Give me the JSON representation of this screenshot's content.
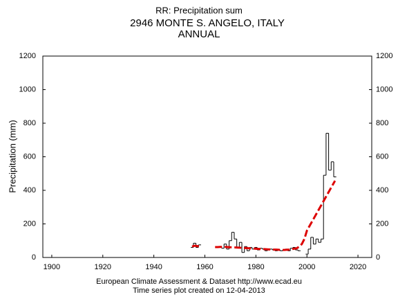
{
  "chart_data": {
    "type": "line",
    "title": "RR: Precipitation sum",
    "subtitle": "2946 MONTE S. ANGELO, ITALY",
    "period": "ANNUAL",
    "y_label": "Precipitation (mm)",
    "footer": "European Climate Assessment & Dataset  http://www.ecad.eu",
    "footer2": "Time series plot created on 12-04-2013",
    "x": [
      1955,
      1956,
      1957,
      1958,
      1959,
      1960,
      1961,
      1962,
      1963,
      1964,
      1965,
      1966,
      1967,
      1968,
      1969,
      1970,
      1971,
      1972,
      1973,
      1974,
      1975,
      1976,
      1977,
      1978,
      1979,
      1980,
      1981,
      1982,
      1983,
      1984,
      1985,
      1986,
      1987,
      1988,
      1989,
      1990,
      1991,
      1992,
      1993,
      1994,
      1995,
      1996,
      1997,
      1998,
      1999,
      2000,
      2001,
      2002,
      2003,
      2004,
      2005,
      2006,
      2007,
      2008,
      2009,
      2010,
      2011
    ],
    "series": [
      {
        "name": "annual",
        "color": "#000000",
        "style": "step",
        "values": [
          60,
          85,
          60,
          75,
          null,
          null,
          null,
          null,
          null,
          null,
          null,
          null,
          55,
          80,
          50,
          100,
          150,
          110,
          60,
          90,
          30,
          65,
          40,
          60,
          50,
          60,
          45,
          55,
          50,
          40,
          45,
          50,
          45,
          40,
          45,
          40,
          45,
          50,
          40,
          55,
          60,
          45,
          40,
          null,
          null,
          20,
          50,
          120,
          80,
          110,
          90,
          110,
          490,
          740,
          520,
          570,
          480
        ]
      },
      {
        "name": "smoothed",
        "color": "#dd0000",
        "style": "dashed",
        "values": [
          65,
          70,
          68,
          65,
          null,
          null,
          null,
          null,
          null,
          62,
          62,
          63,
          63,
          63,
          62,
          61,
          60,
          60,
          59,
          58,
          57,
          56,
          55,
          54,
          53,
          52,
          51,
          50,
          50,
          49,
          48,
          48,
          47,
          47,
          46,
          45,
          45,
          46,
          47,
          50,
          52,
          55,
          65,
          80,
          110,
          160,
          187,
          214,
          241,
          268,
          295,
          322,
          349,
          376,
          403,
          430,
          457
        ]
      }
    ],
    "xlim": [
      1896.5,
      2025.4
    ],
    "ylim": [
      0,
      1200
    ],
    "y2lim": [
      0,
      1200
    ],
    "xticks": [
      1900,
      1920,
      1940,
      1960,
      1980,
      2000,
      2020
    ],
    "yticks": [
      0,
      200,
      400,
      600,
      800,
      1000,
      1200
    ],
    "y2ticks": [
      0,
      200,
      400,
      600,
      800,
      1000,
      1200
    ]
  }
}
